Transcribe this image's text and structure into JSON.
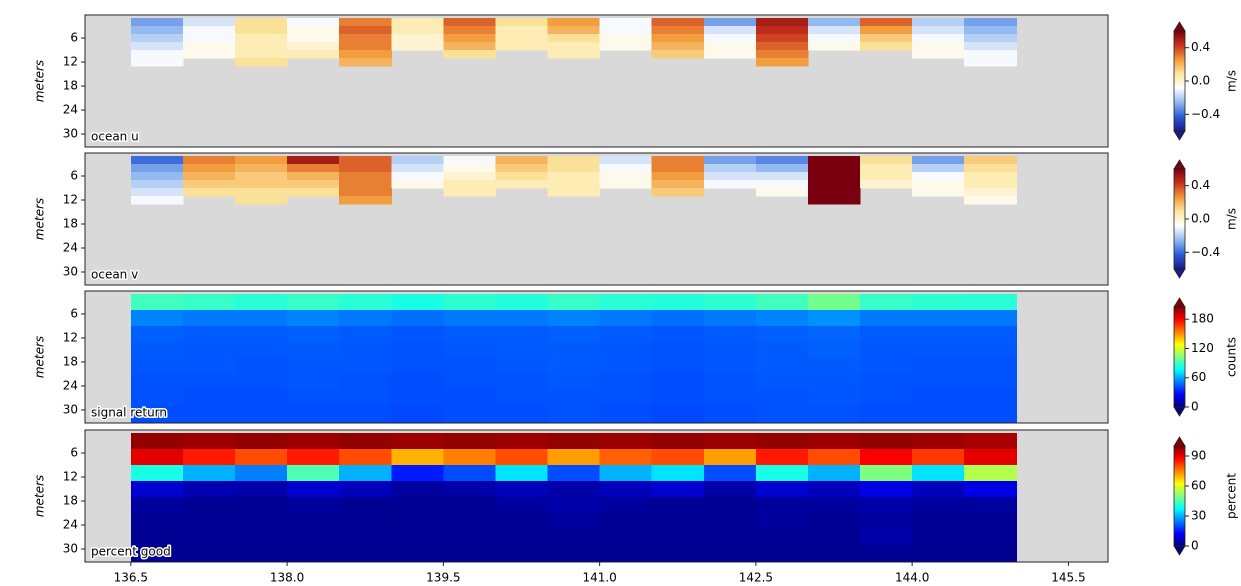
{
  "chart_data": [
    {
      "type": "heatmap",
      "label": "ocean u",
      "ylabel": "meters",
      "colorbar_label": "m/s",
      "xlim": [
        136.06,
        145.88
      ],
      "ylim": [
        33.25,
        0.25
      ],
      "yticks": [
        6,
        12,
        18,
        24,
        30
      ],
      "clim": [
        -0.6,
        0.6
      ],
      "colorbar_ticks": [
        {
          "value": -0.4,
          "label": "−0.4"
        },
        {
          "value": 0,
          "label": "0.0"
        },
        0.4
      ],
      "colorbar_extend": "both",
      "background": "#d9d9d9",
      "cmap": [
        "#1a1a8c",
        "#2b5cd6",
        "#8fb8f0",
        "#ffffff",
        "#fce7a0",
        "#f29a3a",
        "#c8321e",
        "#7a0010"
      ],
      "x": [
        136.75,
        137.25,
        137.75,
        138.25,
        138.75,
        139.25,
        139.75,
        140.25,
        140.75,
        141.25,
        141.75,
        142.25,
        142.75,
        143.25,
        143.75,
        144.25,
        144.75
      ],
      "y": [
        2,
        4,
        6,
        8,
        10,
        12
      ],
      "values": [
        [
          -0.3,
          -0.15,
          0.1,
          -0.1,
          0.3,
          0.05,
          0.35,
          0.1,
          0.25,
          -0.1,
          0.35,
          -0.3,
          0.5,
          -0.25,
          0.35,
          -0.2,
          -0.3
        ],
        [
          -0.25,
          -0.1,
          0.1,
          -0.05,
          0.35,
          0.05,
          0.3,
          0.05,
          0.2,
          -0.1,
          0.3,
          -0.15,
          0.45,
          -0.15,
          0.25,
          -0.15,
          -0.25
        ],
        [
          -0.2,
          -0.1,
          0.05,
          -0.05,
          0.3,
          0,
          0.25,
          0.05,
          0.1,
          -0.05,
          0.25,
          -0.1,
          0.4,
          -0.1,
          0.15,
          -0.1,
          -0.2
        ],
        [
          -0.15,
          -0.05,
          0.05,
          0,
          0.3,
          0,
          0.2,
          0.05,
          0.05,
          -0.05,
          0.2,
          -0.05,
          0.35,
          -0.05,
          0.1,
          -0.05,
          -0.15
        ],
        [
          -0.1,
          -0.05,
          0.05,
          0.05,
          0.25,
          null,
          0.1,
          null,
          0.05,
          null,
          0.15,
          -0.05,
          0.3,
          null,
          null,
          -0.05,
          -0.1
        ],
        [
          -0.1,
          null,
          0.1,
          null,
          0.2,
          null,
          null,
          null,
          null,
          null,
          null,
          null,
          0.25,
          null,
          null,
          null,
          -0.1
        ]
      ]
    },
    {
      "type": "heatmap",
      "label": "ocean v",
      "ylabel": "meters",
      "colorbar_label": "m/s",
      "xlim": [
        136.06,
        145.88
      ],
      "ylim": [
        33.25,
        0.25
      ],
      "yticks": [
        6,
        12,
        18,
        24,
        30
      ],
      "clim": [
        -0.6,
        0.6
      ],
      "colorbar_ticks": [
        {
          "value": -0.4,
          "label": "−0.4"
        },
        {
          "value": 0,
          "label": "0.0"
        },
        0.4
      ],
      "colorbar_extend": "both",
      "background": "#d9d9d9",
      "cmap": [
        "#1a1a8c",
        "#2b5cd6",
        "#8fb8f0",
        "#ffffff",
        "#fce7a0",
        "#f29a3a",
        "#c8321e",
        "#7a0010"
      ],
      "x": [
        136.75,
        137.25,
        137.75,
        138.25,
        138.75,
        139.25,
        139.75,
        140.25,
        140.75,
        141.25,
        141.75,
        142.25,
        142.75,
        143.25,
        143.75,
        144.25,
        144.75
      ],
      "y": [
        2,
        4,
        6,
        8,
        10,
        12
      ],
      "values": [
        [
          -0.4,
          0.3,
          0.25,
          0.5,
          0.35,
          -0.2,
          -0.1,
          0.2,
          0.1,
          -0.15,
          0.3,
          -0.3,
          -0.35,
          0.7,
          0.1,
          -0.3,
          0.15
        ],
        [
          -0.3,
          0.25,
          0.2,
          0.3,
          0.35,
          -0.15,
          -0.05,
          0.15,
          0.1,
          -0.1,
          0.3,
          -0.2,
          -0.25,
          0.7,
          0.05,
          -0.2,
          0.1
        ],
        [
          -0.25,
          0.2,
          0.15,
          0.2,
          0.3,
          -0.1,
          0,
          0.1,
          0.05,
          -0.05,
          0.25,
          -0.15,
          -0.15,
          0.7,
          0.05,
          -0.1,
          0.05
        ],
        [
          -0.2,
          0.15,
          0.15,
          0.15,
          0.3,
          -0.05,
          0.05,
          0.05,
          0.05,
          -0.05,
          0.2,
          -0.1,
          -0.1,
          0.7,
          0,
          -0.05,
          0.05
        ],
        [
          -0.15,
          0.1,
          0.1,
          0.1,
          0.3,
          null,
          0.05,
          null,
          0.05,
          null,
          0.15,
          null,
          -0.05,
          0.7,
          null,
          -0.05,
          0
        ],
        [
          -0.1,
          null,
          0.1,
          null,
          0.25,
          null,
          null,
          null,
          null,
          null,
          null,
          null,
          null,
          0.7,
          null,
          null,
          -0.05
        ]
      ]
    },
    {
      "type": "heatmap",
      "label": "signal return",
      "ylabel": "meters",
      "colorbar_label": "counts",
      "xlim": [
        136.06,
        145.88
      ],
      "ylim": [
        33.25,
        0.25
      ],
      "yticks": [
        6,
        12,
        18,
        24,
        30
      ],
      "clim": [
        0,
        205
      ],
      "colorbar_ticks": [
        0,
        60,
        120,
        180
      ],
      "colorbar_extend": "both",
      "background": "#d9d9d9",
      "cmap": [
        "#00007f",
        "#0000ff",
        "#007fff",
        "#00ffff",
        "#7fff7f",
        "#ffff00",
        "#ff7f00",
        "#ff0000",
        "#7f0000"
      ],
      "x": [
        136.75,
        137.25,
        137.75,
        138.25,
        138.75,
        139.25,
        139.75,
        140.25,
        140.75,
        141.25,
        141.75,
        142.25,
        142.75,
        143.25,
        143.75,
        144.25,
        144.75
      ],
      "y": [
        3,
        7,
        11,
        15,
        19,
        23,
        27,
        31
      ],
      "values": [
        [
          90,
          88,
          85,
          88,
          85,
          82,
          86,
          84,
          88,
          85,
          84,
          86,
          90,
          100,
          88,
          86,
          85
        ],
        [
          52,
          50,
          50,
          52,
          50,
          48,
          50,
          50,
          52,
          50,
          48,
          50,
          52,
          55,
          50,
          50,
          50
        ],
        [
          45,
          44,
          44,
          45,
          44,
          43,
          44,
          44,
          45,
          44,
          43,
          44,
          45,
          46,
          44,
          44,
          44
        ],
        [
          44,
          43,
          43,
          44,
          43,
          42,
          43,
          44,
          44,
          43,
          42,
          43,
          44,
          45,
          43,
          43,
          43
        ],
        [
          43,
          43,
          42,
          43,
          43,
          42,
          42,
          43,
          44,
          43,
          42,
          43,
          44,
          44,
          43,
          42,
          42
        ],
        [
          42,
          42,
          42,
          43,
          42,
          41,
          42,
          42,
          43,
          42,
          41,
          42,
          43,
          43,
          42,
          42,
          42
        ],
        [
          42,
          41,
          41,
          42,
          42,
          41,
          41,
          42,
          42,
          42,
          41,
          42,
          42,
          43,
          42,
          41,
          41
        ],
        [
          41,
          41,
          41,
          41,
          41,
          40,
          41,
          41,
          42,
          41,
          40,
          41,
          42,
          42,
          41,
          41,
          41
        ]
      ]
    },
    {
      "type": "heatmap",
      "label": "percent good",
      "ylabel": "meters",
      "colorbar_label": "percent",
      "xlim": [
        136.06,
        145.88
      ],
      "ylim": [
        33.25,
        0.25
      ],
      "yticks": [
        6,
        12,
        18,
        24,
        30
      ],
      "xticks": [
        136.5,
        {
          "value": 138,
          "label": "138.0"
        },
        139.5,
        {
          "value": 141,
          "label": "141.0"
        },
        142.5,
        {
          "value": 144,
          "label": "144.0"
        },
        145.5
      ],
      "clim": [
        0,
        100
      ],
      "colorbar_ticks": [
        0,
        30,
        60,
        90
      ],
      "colorbar_extend": "both",
      "background": "#d9d9d9",
      "cmap": [
        "#00007f",
        "#0000ff",
        "#007fff",
        "#00ffff",
        "#7fff7f",
        "#ffff00",
        "#ff7f00",
        "#ff0000",
        "#7f0000"
      ],
      "x": [
        136.75,
        137.25,
        137.75,
        138.25,
        138.75,
        139.25,
        139.75,
        140.25,
        140.75,
        141.25,
        141.75,
        142.25,
        142.75,
        143.25,
        143.75,
        144.25,
        144.75
      ],
      "y": [
        3,
        7,
        11,
        15,
        19,
        23,
        27,
        31
      ],
      "values": [
        [
          98,
          97,
          98,
          97,
          98,
          97,
          98,
          97,
          98,
          97,
          98,
          97,
          98,
          97,
          98,
          97,
          96
        ],
        [
          90,
          85,
          80,
          85,
          80,
          70,
          75,
          80,
          72,
          78,
          80,
          72,
          85,
          80,
          88,
          82,
          90
        ],
        [
          40,
          30,
          25,
          45,
          30,
          15,
          20,
          35,
          20,
          30,
          35,
          20,
          40,
          30,
          50,
          35,
          55
        ],
        [
          8,
          5,
          4,
          8,
          6,
          3,
          4,
          6,
          4,
          6,
          8,
          4,
          8,
          6,
          10,
          6,
          10
        ],
        [
          3,
          2,
          2,
          3,
          2,
          2,
          2,
          3,
          4,
          3,
          2,
          2,
          3,
          3,
          4,
          3,
          3
        ],
        [
          2,
          2,
          2,
          2,
          2,
          2,
          2,
          2,
          3,
          2,
          2,
          2,
          3,
          2,
          3,
          2,
          2
        ],
        [
          2,
          2,
          2,
          2,
          2,
          2,
          2,
          2,
          2,
          2,
          2,
          2,
          2,
          2,
          4,
          2,
          2
        ],
        [
          2,
          2,
          2,
          2,
          2,
          2,
          2,
          2,
          2,
          2,
          2,
          2,
          2,
          2,
          2,
          2,
          2
        ]
      ]
    }
  ]
}
